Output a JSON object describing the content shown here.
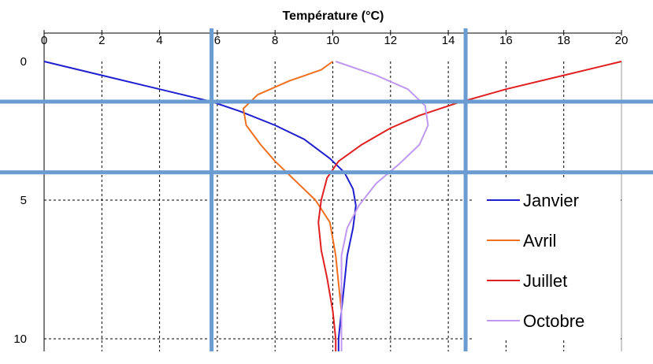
{
  "chart_data": {
    "type": "line",
    "title": "Température (°C)",
    "xlabel": "",
    "ylabel": "",
    "xlim": [
      0,
      20
    ],
    "ylim": [
      0,
      10
    ],
    "y_inverted": true,
    "x_axis_position": "top",
    "x_ticks": [
      "0",
      "2",
      "4",
      "6",
      "8",
      "10",
      "12",
      "14",
      "16",
      "18",
      "20"
    ],
    "y_ticks": [
      "0",
      "5",
      "10"
    ],
    "grid": true,
    "legend_position": "bottom-right",
    "series": [
      {
        "name": "Janvier",
        "color": "#1f1fcf",
        "points": [
          [
            0,
            0
          ],
          [
            2,
            0.5
          ],
          [
            4,
            1.0
          ],
          [
            5.8,
            1.45
          ],
          [
            6.8,
            1.8
          ],
          [
            8,
            2.3
          ],
          [
            9,
            2.8
          ],
          [
            9.9,
            3.5
          ],
          [
            10.4,
            4.0
          ],
          [
            10.7,
            4.6
          ],
          [
            10.8,
            5.2
          ],
          [
            10.7,
            6.0
          ],
          [
            10.5,
            7.0
          ],
          [
            10.4,
            8.0
          ],
          [
            10.3,
            9.0
          ],
          [
            10.2,
            10.0
          ]
        ]
      },
      {
        "name": "Avril",
        "color": "#f07020",
        "points": [
          [
            10,
            0
          ],
          [
            9.6,
            0.3
          ],
          [
            8.5,
            0.7
          ],
          [
            7.4,
            1.2
          ],
          [
            6.9,
            1.7
          ],
          [
            7.0,
            2.3
          ],
          [
            7.5,
            3.0
          ],
          [
            8.0,
            3.6
          ],
          [
            8.7,
            4.3
          ],
          [
            9.4,
            5.0
          ],
          [
            9.9,
            5.8
          ],
          [
            10.1,
            7.0
          ],
          [
            10.2,
            8.0
          ],
          [
            10.3,
            9.0
          ],
          [
            10.3,
            10.0
          ]
        ]
      },
      {
        "name": "Juillet",
        "color": "#e02020",
        "points": [
          [
            20,
            0
          ],
          [
            18,
            0.5
          ],
          [
            16,
            1.0
          ],
          [
            14.3,
            1.5
          ],
          [
            13,
            1.95
          ],
          [
            12,
            2.4
          ],
          [
            11,
            3.0
          ],
          [
            10.2,
            3.6
          ],
          [
            9.8,
            4.2
          ],
          [
            9.6,
            5.0
          ],
          [
            9.5,
            5.8
          ],
          [
            9.6,
            6.8
          ],
          [
            9.8,
            7.8
          ],
          [
            10.0,
            9.0
          ],
          [
            10.1,
            10.0
          ]
        ]
      },
      {
        "name": "Octobre",
        "color": "#c098f0",
        "points": [
          [
            10.1,
            0
          ],
          [
            11.5,
            0.5
          ],
          [
            12.6,
            1.0
          ],
          [
            13.2,
            1.6
          ],
          [
            13.3,
            2.3
          ],
          [
            13.0,
            3.0
          ],
          [
            12.3,
            3.7
          ],
          [
            11.5,
            4.4
          ],
          [
            10.9,
            5.2
          ],
          [
            10.5,
            6.0
          ],
          [
            10.3,
            7.0
          ],
          [
            10.3,
            8.0
          ],
          [
            10.3,
            9.0
          ],
          [
            10.3,
            10.0
          ]
        ]
      }
    ],
    "reference_lines": {
      "color": "#6a9bd1",
      "x": [
        5.8,
        14.6
      ],
      "y": [
        1.45,
        4.0
      ]
    }
  }
}
